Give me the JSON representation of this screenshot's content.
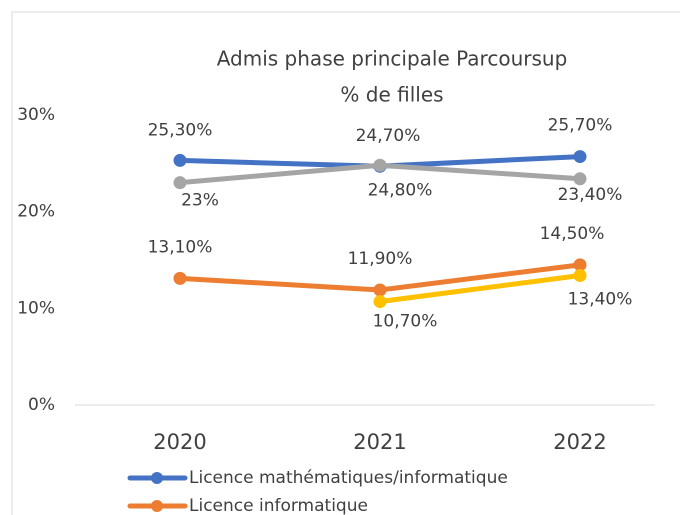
{
  "chart_data": {
    "type": "line",
    "title": "Admis phase principale Parcoursup",
    "subtitle": "% de filles",
    "categories": [
      "2020",
      "2021",
      "2022"
    ],
    "series": [
      {
        "name": "Licence mathématiques/informatique",
        "color": "#4472c4",
        "values": [
          25.3,
          24.7,
          25.7
        ],
        "value_labels": [
          "25,30%",
          "24,70%",
          "25,70%"
        ]
      },
      {
        "color": "#a5a5a5",
        "values": [
          23,
          24.8,
          23.4
        ],
        "value_labels": [
          "23%",
          "24,80%",
          "23,40%"
        ]
      },
      {
        "name": "Licence informatique",
        "color": "#ed7d31",
        "values": [
          13.1,
          11.9,
          14.5
        ],
        "value_labels": [
          "13,10%",
          "11,90%",
          "14,50%"
        ]
      },
      {
        "color": "#ffc000",
        "values": [
          null,
          10.7,
          13.4
        ],
        "value_labels": [
          null,
          "10,70%",
          "13,40%"
        ]
      }
    ],
    "ylim": [
      0,
      30
    ],
    "yticks": [
      {
        "value": 0,
        "label": "0%"
      },
      {
        "value": 10,
        "label": "10%"
      },
      {
        "value": 20,
        "label": "20%"
      },
      {
        "value": 30,
        "label": "30%"
      }
    ],
    "grid": false
  }
}
